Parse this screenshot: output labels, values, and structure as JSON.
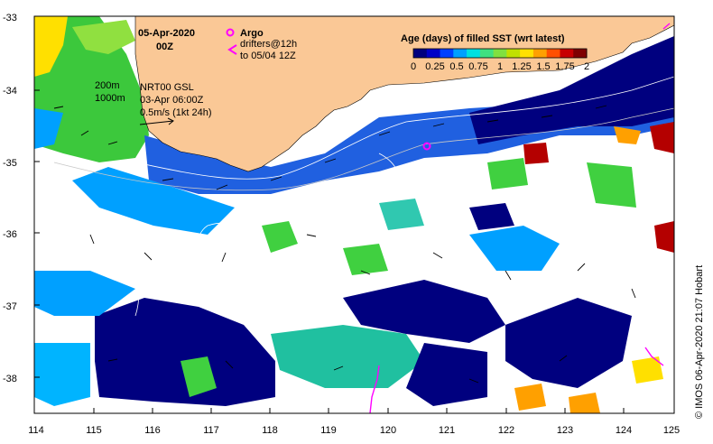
{
  "map": {
    "date_label": "05-Apr-2020",
    "time_label": "00Z",
    "argo_label": "Argo",
    "drifters_line1": "drifters@12h",
    "drifters_line2": "to 05/04 12Z",
    "depth_200": "200m",
    "depth_1000": "1000m",
    "product_label": "NRT00 GSL",
    "product_time": "03-Apr 06:00Z",
    "scale_label": "0.5m/s (1kt 24h)",
    "credit": "© IMOS 06-Apr-2020 21:07 Hobart"
  },
  "legend": {
    "title": "Age (days) of filled SST (wrt latest)",
    "ticks": [
      "0",
      "0.25",
      "0.5",
      "0.75",
      "1",
      "1.25",
      "1.5",
      "1.75",
      "2"
    ],
    "colors": [
      "#00007f",
      "#0000c8",
      "#0040ff",
      "#00a0ff",
      "#00e0e0",
      "#40e080",
      "#80e040",
      "#c0e000",
      "#ffe000",
      "#ffa000",
      "#ff5000",
      "#c80000",
      "#7f0000"
    ]
  },
  "axes": {
    "x_ticks": [
      "114",
      "115",
      "116",
      "117",
      "118",
      "119",
      "120",
      "121",
      "122",
      "123",
      "124",
      "125"
    ],
    "y_ticks": [
      "-33",
      "-34",
      "-35",
      "-36",
      "-37",
      "-38"
    ]
  },
  "colors": {
    "land": "#fac896",
    "no_data": "#ffffff",
    "argo": "#ff00ff"
  }
}
